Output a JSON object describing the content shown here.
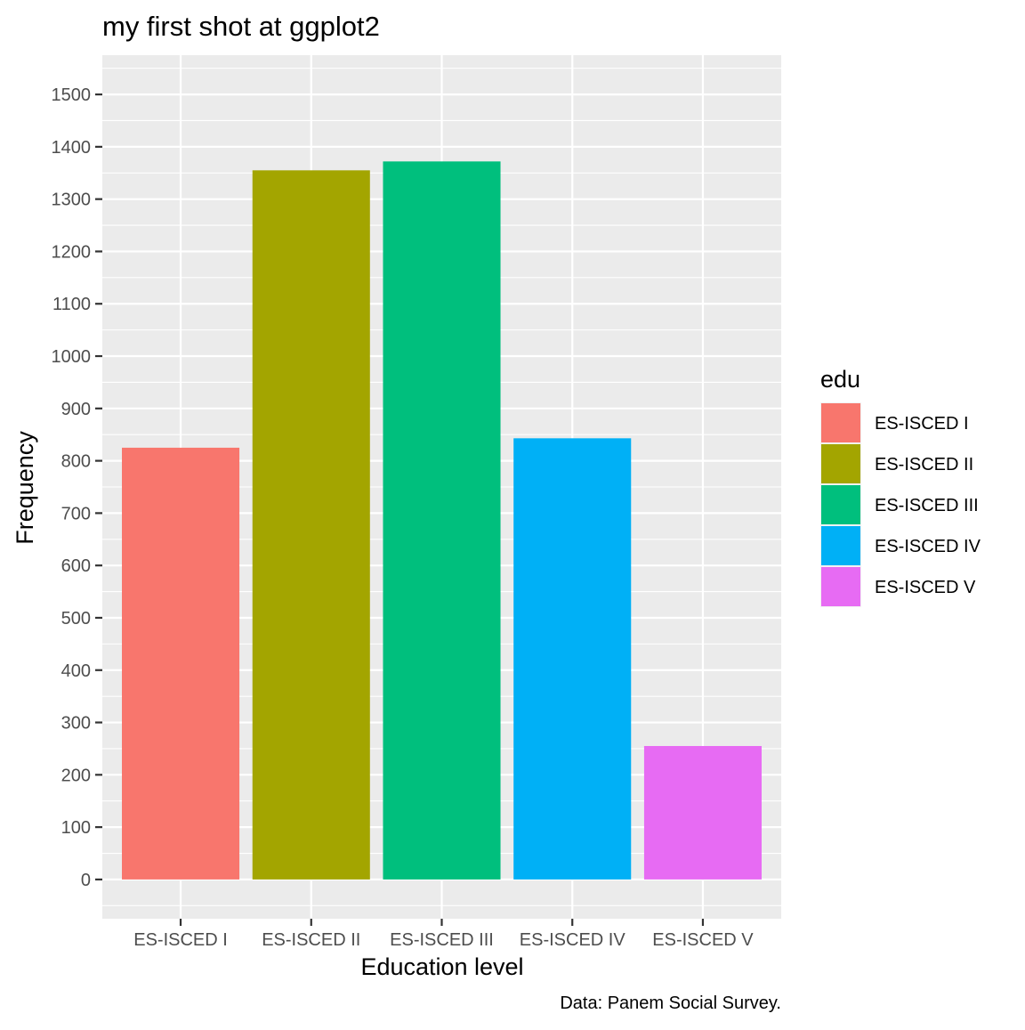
{
  "chart_data": {
    "type": "bar",
    "title": "my first shot at ggplot2",
    "xlabel": "Education level",
    "ylabel": "Frequency",
    "caption": "Data: Panem Social Survey.",
    "categories": [
      "ES-ISCED I",
      "ES-ISCED II",
      "ES-ISCED III",
      "ES-ISCED IV",
      "ES-ISCED V"
    ],
    "values": [
      825,
      1355,
      1372,
      843,
      255
    ],
    "colors": [
      "#F8766D",
      "#A3A500",
      "#00BF7D",
      "#00B0F6",
      "#E76BF3"
    ],
    "ylim": [
      -75,
      1575
    ],
    "yticks": [
      0,
      100,
      200,
      300,
      400,
      500,
      600,
      700,
      800,
      900,
      1000,
      1100,
      1200,
      1300,
      1400,
      1500
    ],
    "grid": true,
    "panel_background": "#EBEBEB",
    "legend": {
      "title": "edu",
      "position": "right",
      "entries": [
        "ES-ISCED I",
        "ES-ISCED II",
        "ES-ISCED III",
        "ES-ISCED IV",
        "ES-ISCED V"
      ]
    }
  }
}
